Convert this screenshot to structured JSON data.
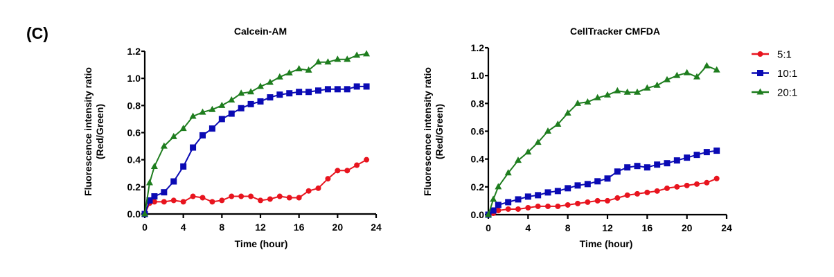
{
  "panel_label": "(C)",
  "legend": [
    {
      "name": "5:1",
      "marker": "circle",
      "color": "#e8141e"
    },
    {
      "name": "10:1",
      "marker": "square",
      "color": "#0a0ab4"
    },
    {
      "name": "20:1",
      "marker": "triangle",
      "color": "#1e7d1e"
    }
  ],
  "chart_data": [
    {
      "type": "line",
      "title": "Calcein-AM",
      "xlabel": "Time (hour)",
      "ylabel": [
        "Fluorescence intensity ratio",
        "(Red/Green)"
      ],
      "xlim": [
        0,
        24
      ],
      "ylim": [
        0,
        1.2
      ],
      "xticks": [
        0,
        4,
        8,
        12,
        16,
        20,
        24
      ],
      "xtick_labels": [
        "0",
        "4",
        "8",
        "12",
        "16",
        "20",
        "24"
      ],
      "yticks": [
        0,
        0.2,
        0.4,
        0.6,
        0.8,
        1.0,
        1.2
      ],
      "ytick_labels": [
        "0.0",
        "0.2",
        "0.4",
        "0.6",
        "0.8",
        "1.0",
        "1.2"
      ],
      "grid": false,
      "x": [
        0,
        0.5,
        1,
        2,
        3,
        4,
        5,
        6,
        7,
        8,
        9,
        10,
        11,
        12,
        13,
        14,
        15,
        16,
        17,
        18,
        19,
        20,
        21,
        22,
        23
      ],
      "series": [
        {
          "name": "5:1",
          "values": [
            0,
            0.08,
            0.09,
            0.09,
            0.1,
            0.09,
            0.13,
            0.12,
            0.09,
            0.1,
            0.13,
            0.13,
            0.13,
            0.1,
            0.11,
            0.13,
            0.12,
            0.12,
            0.17,
            0.19,
            0.26,
            0.32,
            0.32,
            0.36,
            0.4
          ]
        },
        {
          "name": "10:1",
          "values": [
            0,
            0.1,
            0.13,
            0.16,
            0.24,
            0.35,
            0.49,
            0.58,
            0.63,
            0.7,
            0.74,
            0.78,
            0.81,
            0.83,
            0.86,
            0.88,
            0.89,
            0.9,
            0.9,
            0.91,
            0.92,
            0.92,
            0.92,
            0.94,
            0.94
          ]
        },
        {
          "name": "20:1",
          "values": [
            0,
            0.23,
            0.35,
            0.5,
            0.57,
            0.63,
            0.72,
            0.75,
            0.77,
            0.8,
            0.84,
            0.89,
            0.9,
            0.94,
            0.97,
            1.01,
            1.04,
            1.07,
            1.06,
            1.12,
            1.12,
            1.14,
            1.14,
            1.17,
            1.18
          ]
        }
      ]
    },
    {
      "type": "line",
      "title": "CellTracker CMFDA",
      "xlabel": "Time (hour)",
      "ylabel": [
        "Fluorescence intensity ratio",
        "(Red/Green)"
      ],
      "xlim": [
        0,
        24
      ],
      "ylim": [
        0,
        1.2
      ],
      "xticks": [
        0,
        4,
        8,
        12,
        16,
        20,
        24
      ],
      "xtick_labels": [
        "0",
        "4",
        "8",
        "12",
        "16",
        "20",
        "24"
      ],
      "yticks": [
        0,
        0.2,
        0.4,
        0.6,
        0.8,
        1.0,
        1.2
      ],
      "ytick_labels": [
        "0.0",
        "0.2",
        "0.4",
        "0.6",
        "0.8",
        "1.0",
        "1.2"
      ],
      "grid": false,
      "legend_position": "right",
      "x": [
        0,
        0.5,
        1,
        2,
        3,
        4,
        5,
        6,
        7,
        8,
        9,
        10,
        11,
        12,
        13,
        14,
        15,
        16,
        17,
        18,
        19,
        20,
        21,
        22,
        23
      ],
      "series": [
        {
          "name": "5:1",
          "values": [
            0,
            0.01,
            0.03,
            0.04,
            0.04,
            0.05,
            0.06,
            0.06,
            0.06,
            0.07,
            0.08,
            0.09,
            0.1,
            0.1,
            0.12,
            0.14,
            0.15,
            0.16,
            0.17,
            0.19,
            0.2,
            0.21,
            0.22,
            0.23,
            0.26
          ]
        },
        {
          "name": "10:1",
          "values": [
            0,
            0.03,
            0.07,
            0.09,
            0.11,
            0.13,
            0.14,
            0.16,
            0.17,
            0.19,
            0.21,
            0.22,
            0.24,
            0.26,
            0.31,
            0.34,
            0.35,
            0.34,
            0.36,
            0.37,
            0.39,
            0.41,
            0.43,
            0.45,
            0.46
          ]
        },
        {
          "name": "20:1",
          "values": [
            0,
            0.11,
            0.2,
            0.3,
            0.39,
            0.45,
            0.52,
            0.6,
            0.65,
            0.73,
            0.8,
            0.81,
            0.84,
            0.86,
            0.89,
            0.88,
            0.88,
            0.91,
            0.93,
            0.97,
            1.0,
            1.02,
            0.99,
            1.07,
            1.04
          ]
        }
      ]
    }
  ]
}
